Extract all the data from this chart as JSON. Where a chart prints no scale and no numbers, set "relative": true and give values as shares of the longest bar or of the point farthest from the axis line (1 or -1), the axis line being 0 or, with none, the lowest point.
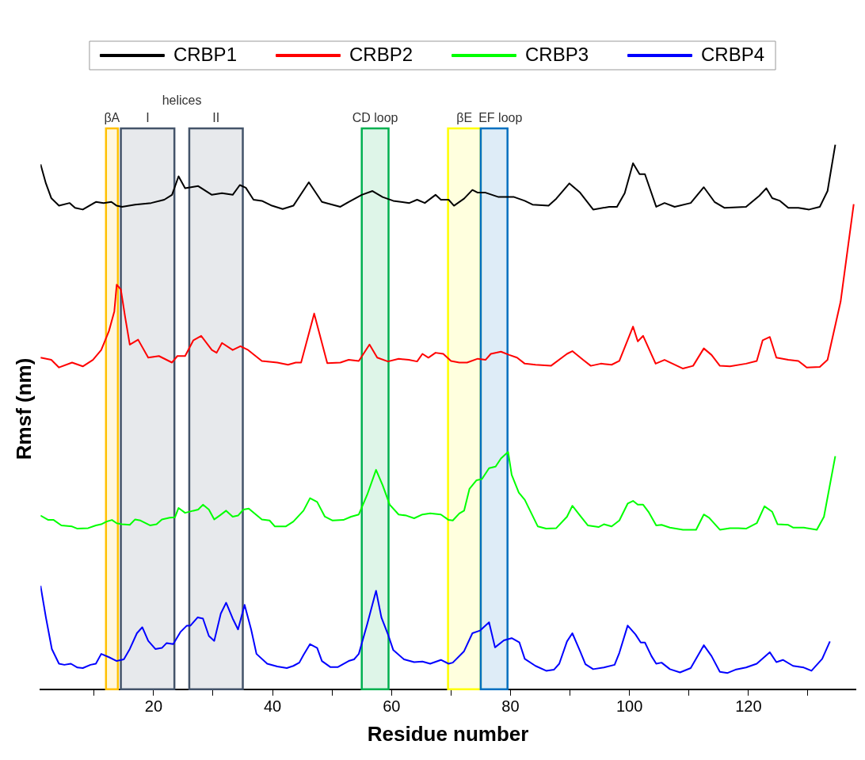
{
  "chart_data": {
    "type": "line",
    "relative": true,
    "xlabel": "Residue number",
    "ylabel": "Rmsf (nm)",
    "legend": "top",
    "grid": false,
    "marker": "none",
    "line_style": "solid",
    "xlim": [
      1,
      138
    ],
    "xticks": [
      {
        "value": 10,
        "label": null
      },
      20,
      {
        "value": 30,
        "label": null
      },
      40,
      {
        "value": 50,
        "label": null
      },
      60,
      {
        "value": 70,
        "label": null
      },
      80,
      {
        "value": 90,
        "label": null
      },
      100,
      {
        "value": 110,
        "label": null
      },
      120,
      {
        "value": 130,
        "label": null
      }
    ],
    "bands": [
      {
        "axis": "x",
        "from": 12,
        "to": 14,
        "label": "βA",
        "color": "#ffc000"
      },
      {
        "axis": "x",
        "from": 14.5,
        "to": 23.5,
        "label": "I",
        "color": "#44546a"
      },
      {
        "axis": "x",
        "from": 26,
        "to": 35,
        "label": "II",
        "color": "#44546a"
      },
      {
        "axis": "x",
        "from": 55,
        "to": 59.5,
        "label": "CD loop",
        "color": "#00b050"
      },
      {
        "axis": "x",
        "from": 69.5,
        "to": 75,
        "label": "βE",
        "color": "#ffff00"
      },
      {
        "axis": "x",
        "from": 75,
        "to": 79.5,
        "label": "EF loop",
        "color": "#0070c0"
      }
    ],
    "annotations": [
      "helices"
    ],
    "series": [
      {
        "name": "CRBP1",
        "color": "#000000",
        "x": [
          1,
          1.9,
          2.8,
          4.1,
          5.9,
          6.8,
          8.1,
          10.3,
          11.6,
          12.9,
          13.8,
          14.7,
          16.9,
          19.6,
          21.8,
          23.1,
          24.2,
          25.3,
          27.5,
          29.8,
          31.5,
          33.3,
          34.5,
          35.5,
          36.8,
          38.2,
          39.9,
          41.7,
          43.5,
          46.1,
          48.3,
          51.4,
          52.8,
          55,
          56.8,
          58.5,
          60.3,
          63,
          64.3,
          65.6,
          67.4,
          68.3,
          69.6,
          70.5,
          72.2,
          73.6,
          74.5,
          75.8,
          78,
          80.6,
          82.4,
          83.7,
          86.4,
          87.7,
          89.9,
          91.7,
          93.9,
          96.6,
          97.9,
          99.2,
          100.6,
          101.7,
          102.6,
          104.5,
          105.9,
          107.6,
          110.3,
          112.5,
          114.3,
          116,
          119.6,
          121.8,
          123,
          124,
          125.3,
          126.7,
          128.4,
          130.2,
          132,
          133.3,
          134.6
        ],
        "values": [
          0.964,
          0.929,
          0.902,
          0.888,
          0.893,
          0.884,
          0.881,
          0.895,
          0.893,
          0.895,
          0.888,
          0.886,
          0.89,
          0.893,
          0.899,
          0.908,
          0.942,
          0.92,
          0.924,
          0.908,
          0.911,
          0.908,
          0.926,
          0.921,
          0.899,
          0.897,
          0.888,
          0.882,
          0.888,
          0.931,
          0.895,
          0.886,
          0.895,
          0.908,
          0.915,
          0.904,
          0.897,
          0.893,
          0.899,
          0.893,
          0.908,
          0.899,
          0.899,
          0.888,
          0.901,
          0.917,
          0.912,
          0.912,
          0.904,
          0.904,
          0.897,
          0.89,
          0.888,
          0.901,
          0.929,
          0.912,
          0.881,
          0.886,
          0.886,
          0.911,
          0.966,
          0.946,
          0.946,
          0.886,
          0.893,
          0.886,
          0.893,
          0.922,
          0.895,
          0.884,
          0.886,
          0.906,
          0.92,
          0.902,
          0.897,
          0.884,
          0.884,
          0.881,
          0.886,
          0.915,
          1.0
        ]
      },
      {
        "name": "CRBP2",
        "color": "#ff0000",
        "x": [
          1,
          2.8,
          4.1,
          6.3,
          8.1,
          9.8,
          11.2,
          12.5,
          13.4,
          13.8,
          14.5,
          15.2,
          16,
          17.4,
          19.1,
          20.9,
          23.1,
          24,
          25.3,
          26.7,
          28,
          29.8,
          30.6,
          31.5,
          33.3,
          34.6,
          35.9,
          38.2,
          40.8,
          42.6,
          43.9,
          44.8,
          47,
          49.2,
          51.4,
          52.8,
          54.5,
          56.3,
          57.6,
          59.4,
          61.2,
          62.9,
          64.3,
          65.2,
          66.2,
          67.4,
          68.7,
          70,
          71.4,
          72.7,
          74.5,
          75.8,
          76.7,
          78.4,
          79.8,
          81.1,
          82.4,
          84.2,
          86.8,
          89.5,
          90.4,
          92.2,
          93.5,
          95.2,
          97,
          98.3,
          100.6,
          101.4,
          102.3,
          104.4,
          105.9,
          109,
          110.7,
          112.5,
          113.8,
          115.2,
          116.9,
          119.6,
          121.4,
          122.4,
          123.6,
          124.7,
          126.7,
          128.4,
          129.8,
          132,
          133.3,
          135.5,
          137.7
        ],
        "values": [
          0.609,
          0.605,
          0.591,
          0.6,
          0.593,
          0.605,
          0.623,
          0.658,
          0.694,
          0.743,
          0.734,
          0.685,
          0.633,
          0.642,
          0.609,
          0.612,
          0.6,
          0.612,
          0.612,
          0.641,
          0.649,
          0.623,
          0.618,
          0.636,
          0.623,
          0.63,
          0.623,
          0.603,
          0.6,
          0.596,
          0.6,
          0.6,
          0.69,
          0.599,
          0.6,
          0.605,
          0.603,
          0.633,
          0.609,
          0.602,
          0.607,
          0.605,
          0.602,
          0.616,
          0.609,
          0.618,
          0.616,
          0.603,
          0.6,
          0.6,
          0.607,
          0.605,
          0.616,
          0.62,
          0.614,
          0.609,
          0.598,
          0.596,
          0.594,
          0.616,
          0.621,
          0.605,
          0.594,
          0.598,
          0.596,
          0.603,
          0.666,
          0.639,
          0.649,
          0.598,
          0.605,
          0.589,
          0.594,
          0.626,
          0.614,
          0.594,
          0.593,
          0.598,
          0.603,
          0.641,
          0.647,
          0.609,
          0.605,
          0.603,
          0.591,
          0.592,
          0.605,
          0.712,
          0.891
        ]
      },
      {
        "name": "CRBP3",
        "color": "#00ff00",
        "x": [
          1,
          2.3,
          3.2,
          4.5,
          6.3,
          7.2,
          9,
          10.3,
          11.2,
          12.1,
          13,
          13.8,
          14.7,
          16,
          16.9,
          17.8,
          19.4,
          20.5,
          21.4,
          22.7,
          23.6,
          24.2,
          25.3,
          26.7,
          27.5,
          28.3,
          29.3,
          30.2,
          31.1,
          32.2,
          33.3,
          34.2,
          35.1,
          36,
          38.2,
          39.5,
          40.4,
          42.2,
          43.5,
          45.2,
          46.3,
          47.5,
          48.8,
          50.1,
          51.9,
          53.2,
          54.5,
          55.9,
          57.4,
          58.5,
          59.7,
          61.2,
          62.5,
          63.8,
          65.2,
          66.5,
          68.3,
          69.6,
          70.3,
          71.4,
          72.2,
          73.1,
          74.3,
          75.2,
          76.4,
          77.5,
          78.4,
          79.6,
          80.2,
          81.4,
          82.4,
          84.6,
          86,
          87.7,
          89.5,
          90.4,
          91.7,
          93,
          94.8,
          95.7,
          97,
          98.3,
          99.7,
          100.6,
          101.4,
          102.3,
          103.2,
          104.5,
          105.4,
          106.8,
          109,
          111.2,
          112.5,
          113.4,
          115.2,
          116.9,
          118.3,
          119.6,
          121.4,
          122.7,
          124,
          124.9,
          126.7,
          127.5,
          129.3,
          131.5,
          132.7,
          134.6
        ],
        "values": [
          0.319,
          0.311,
          0.311,
          0.301,
          0.299,
          0.295,
          0.296,
          0.301,
          0.303,
          0.308,
          0.311,
          0.305,
          0.303,
          0.302,
          0.312,
          0.31,
          0.301,
          0.303,
          0.312,
          0.315,
          0.316,
          0.333,
          0.324,
          0.328,
          0.33,
          0.339,
          0.33,
          0.312,
          0.319,
          0.328,
          0.317,
          0.319,
          0.33,
          0.332,
          0.312,
          0.31,
          0.299,
          0.299,
          0.308,
          0.328,
          0.351,
          0.344,
          0.317,
          0.31,
          0.311,
          0.317,
          0.321,
          0.357,
          0.403,
          0.375,
          0.339,
          0.321,
          0.319,
          0.314,
          0.321,
          0.323,
          0.321,
          0.311,
          0.31,
          0.323,
          0.328,
          0.368,
          0.384,
          0.386,
          0.406,
          0.409,
          0.424,
          0.436,
          0.394,
          0.361,
          0.348,
          0.299,
          0.295,
          0.296,
          0.317,
          0.337,
          0.319,
          0.301,
          0.298,
          0.303,
          0.299,
          0.31,
          0.341,
          0.346,
          0.339,
          0.339,
          0.326,
          0.301,
          0.302,
          0.297,
          0.293,
          0.293,
          0.321,
          0.315,
          0.293,
          0.296,
          0.296,
          0.295,
          0.305,
          0.336,
          0.326,
          0.303,
          0.302,
          0.297,
          0.297,
          0.293,
          0.317,
          0.428
        ]
      },
      {
        "name": "CRBP4",
        "color": "#0000ff",
        "x": [
          1,
          1.9,
          2.9,
          4.1,
          5,
          6.1,
          7.2,
          8.1,
          9.4,
          10.3,
          11.2,
          12.5,
          13.8,
          15,
          16,
          17.2,
          18.1,
          19.1,
          20.3,
          21.4,
          22.2,
          23.3,
          24.5,
          25.6,
          26.2,
          27.4,
          28.3,
          29.3,
          30.2,
          31.3,
          32.2,
          33.3,
          34.2,
          35.3,
          36.4,
          37.3,
          39.1,
          40.8,
          42.4,
          43.5,
          44.5,
          45.2,
          46.3,
          47.5,
          48.3,
          49.7,
          51,
          52.8,
          53.7,
          54.5,
          55.9,
          57.4,
          58.3,
          59.4,
          60.3,
          62.1,
          63.8,
          65.2,
          66.5,
          68.3,
          69.6,
          70.3,
          72.2,
          73.6,
          74.9,
          76.4,
          77.4,
          78.9,
          80.2,
          81.5,
          82.4,
          84.2,
          86,
          87.3,
          88.2,
          89.5,
          90.4,
          91.7,
          92.6,
          93.9,
          95.7,
          97.5,
          98.3,
          99.7,
          101,
          101.9,
          102.6,
          103.7,
          104.5,
          105.4,
          106.8,
          108.5,
          110.3,
          112.5,
          113.8,
          115.2,
          116.5,
          117.8,
          119.6,
          121.4,
          123.6,
          124.7,
          125.8,
          127.5,
          129.3,
          130.6,
          132.4,
          133.7
        ],
        "values": [
          0.19,
          0.132,
          0.074,
          0.047,
          0.045,
          0.047,
          0.04,
          0.039,
          0.045,
          0.047,
          0.065,
          0.059,
          0.052,
          0.055,
          0.074,
          0.103,
          0.114,
          0.089,
          0.074,
          0.076,
          0.085,
          0.083,
          0.105,
          0.117,
          0.117,
          0.132,
          0.13,
          0.098,
          0.089,
          0.139,
          0.159,
          0.13,
          0.11,
          0.155,
          0.11,
          0.065,
          0.047,
          0.042,
          0.039,
          0.043,
          0.049,
          0.063,
          0.083,
          0.076,
          0.052,
          0.041,
          0.041,
          0.052,
          0.055,
          0.065,
          0.119,
          0.181,
          0.132,
          0.101,
          0.072,
          0.055,
          0.05,
          0.051,
          0.047,
          0.054,
          0.047,
          0.049,
          0.07,
          0.103,
          0.108,
          0.123,
          0.077,
          0.09,
          0.094,
          0.086,
          0.056,
          0.043,
          0.034,
          0.036,
          0.047,
          0.088,
          0.103,
          0.07,
          0.046,
          0.037,
          0.04,
          0.045,
          0.067,
          0.117,
          0.101,
          0.086,
          0.086,
          0.061,
          0.047,
          0.049,
          0.037,
          0.031,
          0.039,
          0.081,
          0.061,
          0.032,
          0.03,
          0.036,
          0.04,
          0.047,
          0.068,
          0.05,
          0.054,
          0.043,
          0.04,
          0.034,
          0.056,
          0.088
        ]
      }
    ]
  }
}
